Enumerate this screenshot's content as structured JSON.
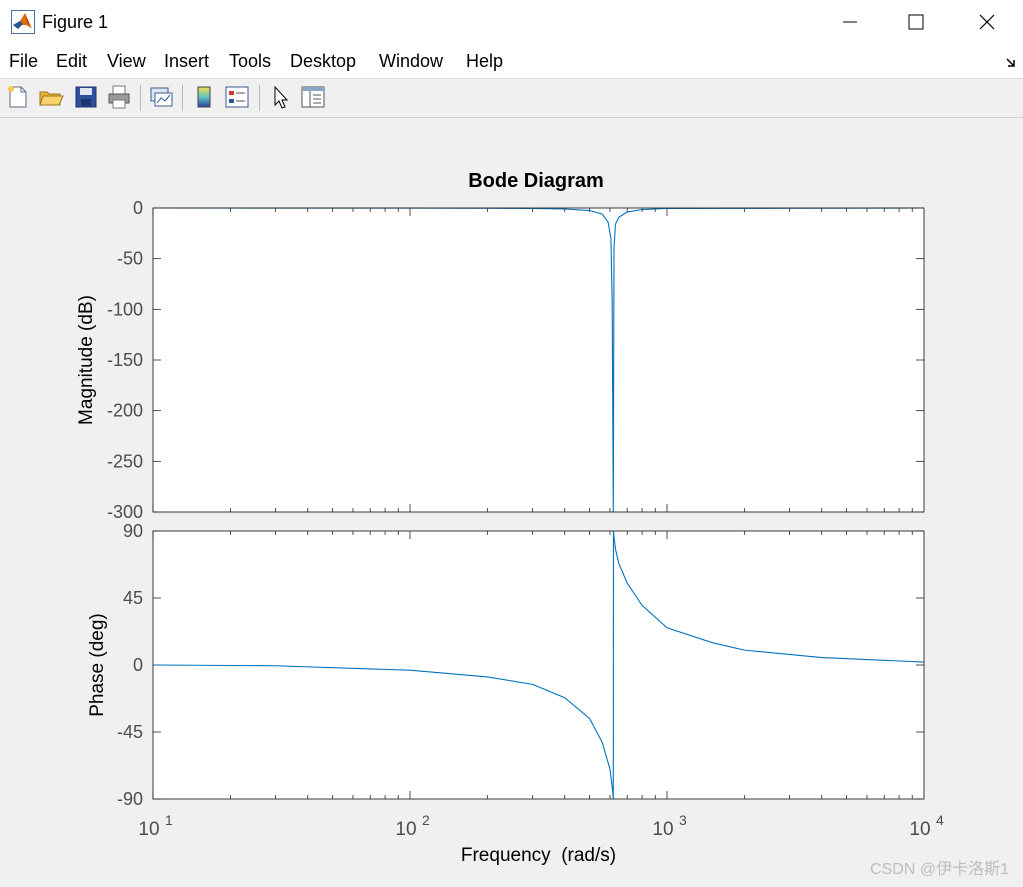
{
  "window": {
    "title": "Figure 1"
  },
  "menu": {
    "items": [
      "File",
      "Edit",
      "View",
      "Insert",
      "Tools",
      "Desktop",
      "Window",
      "Help"
    ]
  },
  "toolbar": {
    "icons": [
      "new-figure-icon",
      "open-file-icon",
      "save-icon",
      "print-icon",
      "link-plot-icon",
      "insert-colorbar-icon",
      "insert-legend-icon",
      "edit-plot-arrow-icon",
      "property-inspector-icon"
    ]
  },
  "chart_data": [
    {
      "type": "line",
      "title": "Bode Diagram",
      "ylabel": "Magnitude (dB)",
      "xscale": "log",
      "xlim": [
        10,
        10000
      ],
      "ylim": [
        -300,
        0
      ],
      "yticks": [
        0,
        -50,
        -100,
        -150,
        -200,
        -250,
        -300
      ],
      "yticklabels": [
        "0",
        "-50",
        "-100",
        "-150",
        "-200",
        "-250",
        "-300"
      ],
      "x": [
        10,
        100,
        300,
        400,
        500,
        560,
        590,
        605,
        612,
        618,
        622,
        630,
        650,
        700,
        800,
        1000,
        10000
      ],
      "y": [
        0,
        -0.05,
        -0.4,
        -1.0,
        -2.5,
        -6,
        -14,
        -30,
        -95,
        -300,
        -40,
        -16,
        -9,
        -4,
        -1.5,
        -0.5,
        0
      ],
      "color": "#0072bd"
    },
    {
      "type": "line",
      "ylabel": "Phase (deg)",
      "xlabel": "Frequency  (rad/s)",
      "xscale": "log",
      "xlim": [
        10,
        10000
      ],
      "ylim": [
        -90,
        90
      ],
      "yticks": [
        90,
        45,
        0,
        -45,
        -90
      ],
      "yticklabels": [
        "90",
        "45",
        "0",
        "-45",
        "-90"
      ],
      "xticks": [
        10,
        100,
        1000,
        10000
      ],
      "xtick_exponents": [
        "1",
        "2",
        "3",
        "4"
      ],
      "xtick_base": "10",
      "x": [
        10,
        30,
        100,
        200,
        300,
        400,
        500,
        560,
        600,
        615,
        618,
        619,
        622,
        630,
        650,
        700,
        800,
        1000,
        1500,
        2000,
        4000,
        10000
      ],
      "y": [
        0,
        -0.5,
        -3.5,
        -8,
        -13,
        -22,
        -36,
        -52,
        -70,
        -85,
        -90,
        90,
        86,
        78,
        68,
        55,
        40,
        25,
        15,
        10,
        5,
        2
      ],
      "color": "#0072bd"
    }
  ],
  "watermark": "CSDN @伊卡洛斯1"
}
